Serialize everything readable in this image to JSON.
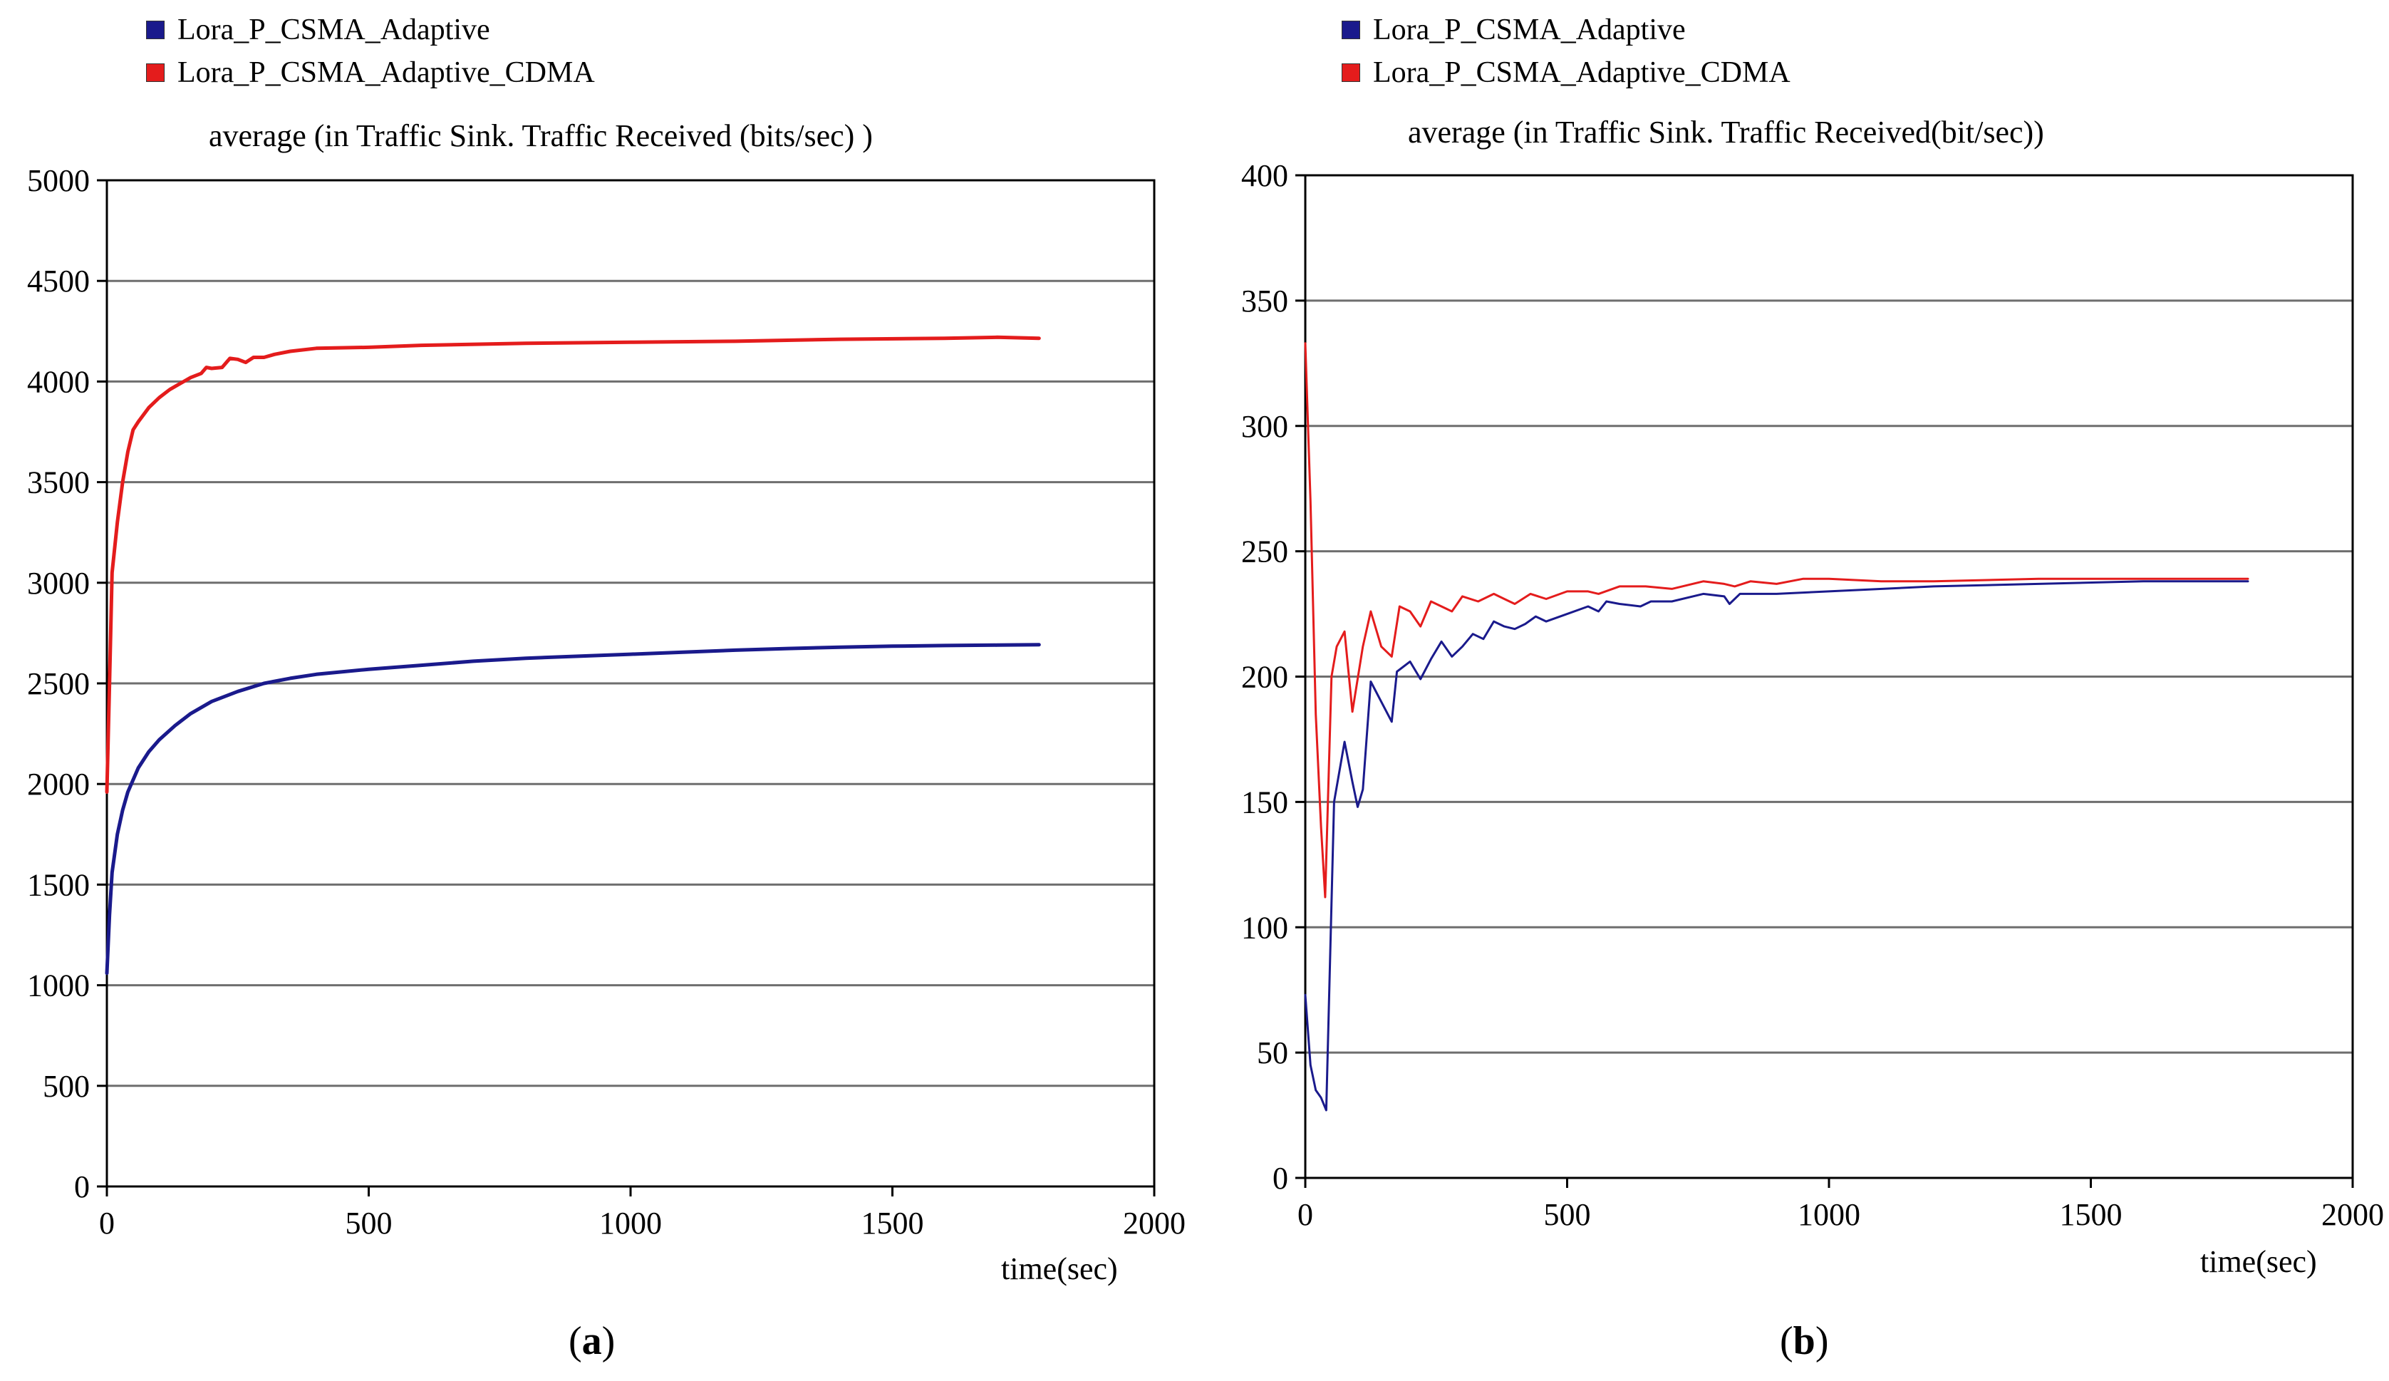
{
  "colors": {
    "blue": "#1a1a8c",
    "red": "#e41c1c",
    "grid": "#6e6e6e"
  },
  "panels": [
    {
      "label_letter": "a",
      "legend": [
        "Lora_P_CSMA_Adaptive",
        "Lora_P_CSMA_Adaptive_CDMA"
      ]
    },
    {
      "label_letter": "b",
      "legend": [
        "Lora_P_CSMA_Adaptive",
        "Lora_P_CSMA_Adaptive_CDMA"
      ]
    }
  ],
  "chart_data": [
    {
      "type": "line",
      "title": "average (in  Traffic  Sink.  Traffic  Received (bits/sec) )",
      "xlabel": "time(sec)",
      "ylabel": "",
      "xlim": [
        0,
        2000
      ],
      "ylim": [
        0,
        5000
      ],
      "xticks": [
        0,
        500,
        1000,
        1500,
        2000
      ],
      "yticks": [
        0,
        500,
        1000,
        1500,
        2000,
        2500,
        3000,
        3500,
        4000,
        4500,
        5000
      ],
      "grid": "horizontal",
      "legend": "top-left",
      "series": [
        {
          "name": "Lora_P_CSMA_Adaptive",
          "color": "blue",
          "points": [
            [
              0,
              1060
            ],
            [
              5,
              1350
            ],
            [
              10,
              1560
            ],
            [
              20,
              1750
            ],
            [
              30,
              1870
            ],
            [
              40,
              1960
            ],
            [
              60,
              2080
            ],
            [
              80,
              2160
            ],
            [
              100,
              2220
            ],
            [
              130,
              2290
            ],
            [
              160,
              2350
            ],
            [
              200,
              2410
            ],
            [
              250,
              2460
            ],
            [
              300,
              2500
            ],
            [
              350,
              2525
            ],
            [
              400,
              2545
            ],
            [
              500,
              2570
            ],
            [
              600,
              2590
            ],
            [
              700,
              2610
            ],
            [
              800,
              2625
            ],
            [
              900,
              2635
            ],
            [
              1000,
              2645
            ],
            [
              1100,
              2655
            ],
            [
              1200,
              2665
            ],
            [
              1300,
              2673
            ],
            [
              1400,
              2680
            ],
            [
              1500,
              2685
            ],
            [
              1600,
              2688
            ],
            [
              1700,
              2690
            ],
            [
              1780,
              2692
            ]
          ]
        },
        {
          "name": "Lora_P_CSMA_Adaptive_CDMA",
          "color": "red",
          "points": [
            [
              0,
              1960
            ],
            [
              5,
              2500
            ],
            [
              10,
              3050
            ],
            [
              20,
              3300
            ],
            [
              30,
              3500
            ],
            [
              40,
              3650
            ],
            [
              50,
              3760
            ],
            [
              60,
              3800
            ],
            [
              80,
              3870
            ],
            [
              100,
              3920
            ],
            [
              120,
              3960
            ],
            [
              140,
              3990
            ],
            [
              160,
              4020
            ],
            [
              180,
              4040
            ],
            [
              190,
              4070
            ],
            [
              200,
              4065
            ],
            [
              220,
              4070
            ],
            [
              235,
              4115
            ],
            [
              250,
              4110
            ],
            [
              265,
              4095
            ],
            [
              280,
              4120
            ],
            [
              300,
              4120
            ],
            [
              320,
              4135
            ],
            [
              350,
              4150
            ],
            [
              400,
              4165
            ],
            [
              500,
              4170
            ],
            [
              600,
              4180
            ],
            [
              800,
              4190
            ],
            [
              1000,
              4195
            ],
            [
              1200,
              4200
            ],
            [
              1400,
              4210
            ],
            [
              1600,
              4215
            ],
            [
              1700,
              4220
            ],
            [
              1780,
              4215
            ]
          ]
        }
      ]
    },
    {
      "type": "line",
      "title": "average (in  Traffic  Sink.  Traffic Received(bit/sec))",
      "xlabel": "time(sec)",
      "ylabel": "",
      "xlim": [
        0,
        2000
      ],
      "ylim": [
        0,
        400
      ],
      "xticks": [
        0,
        500,
        1000,
        1500,
        2000
      ],
      "yticks": [
        0,
        50,
        100,
        150,
        200,
        250,
        300,
        350,
        400
      ],
      "grid": "horizontal",
      "legend": "top-left",
      "series": [
        {
          "name": "Lora_P_CSMA_Adaptive",
          "color": "blue",
          "points": [
            [
              0,
              73
            ],
            [
              10,
              45
            ],
            [
              20,
              35
            ],
            [
              30,
              32
            ],
            [
              40,
              27
            ],
            [
              55,
              150
            ],
            [
              75,
              174
            ],
            [
              90,
              158
            ],
            [
              100,
              148
            ],
            [
              110,
              155
            ],
            [
              125,
              198
            ],
            [
              145,
              190
            ],
            [
              165,
              182
            ],
            [
              175,
              202
            ],
            [
              200,
              206
            ],
            [
              220,
              199
            ],
            [
              240,
              207
            ],
            [
              260,
              214
            ],
            [
              280,
              208
            ],
            [
              300,
              212
            ],
            [
              320,
              217
            ],
            [
              340,
              215
            ],
            [
              360,
              222
            ],
            [
              380,
              220
            ],
            [
              400,
              219
            ],
            [
              420,
              221
            ],
            [
              440,
              224
            ],
            [
              460,
              222
            ],
            [
              500,
              225
            ],
            [
              540,
              228
            ],
            [
              560,
              226
            ],
            [
              575,
              230
            ],
            [
              600,
              229
            ],
            [
              640,
              228
            ],
            [
              660,
              230
            ],
            [
              700,
              230
            ],
            [
              760,
              233
            ],
            [
              800,
              232
            ],
            [
              810,
              229
            ],
            [
              830,
              233
            ],
            [
              900,
              233
            ],
            [
              1000,
              234
            ],
            [
              1200,
              236
            ],
            [
              1400,
              237
            ],
            [
              1600,
              238
            ],
            [
              1800,
              238
            ]
          ]
        },
        {
          "name": "Lora_P_CSMA_Adaptive_CDMA",
          "color": "red",
          "points": [
            [
              0,
              333
            ],
            [
              10,
              270
            ],
            [
              20,
              185
            ],
            [
              30,
              140
            ],
            [
              38,
              112
            ],
            [
              50,
              200
            ],
            [
              60,
              212
            ],
            [
              75,
              218
            ],
            [
              90,
              186
            ],
            [
              110,
              212
            ],
            [
              125,
              226
            ],
            [
              145,
              212
            ],
            [
              165,
              208
            ],
            [
              180,
              228
            ],
            [
              200,
              226
            ],
            [
              220,
              220
            ],
            [
              240,
              230
            ],
            [
              260,
              228
            ],
            [
              280,
              226
            ],
            [
              300,
              232
            ],
            [
              330,
              230
            ],
            [
              360,
              233
            ],
            [
              380,
              231
            ],
            [
              400,
              229
            ],
            [
              430,
              233
            ],
            [
              460,
              231
            ],
            [
              500,
              234
            ],
            [
              540,
              234
            ],
            [
              560,
              233
            ],
            [
              600,
              236
            ],
            [
              650,
              236
            ],
            [
              700,
              235
            ],
            [
              760,
              238
            ],
            [
              800,
              237
            ],
            [
              820,
              236
            ],
            [
              850,
              238
            ],
            [
              900,
              237
            ],
            [
              950,
              239
            ],
            [
              1000,
              239
            ],
            [
              1100,
              238
            ],
            [
              1200,
              238
            ],
            [
              1400,
              239
            ],
            [
              1600,
              239
            ],
            [
              1800,
              239
            ]
          ]
        }
      ]
    }
  ]
}
